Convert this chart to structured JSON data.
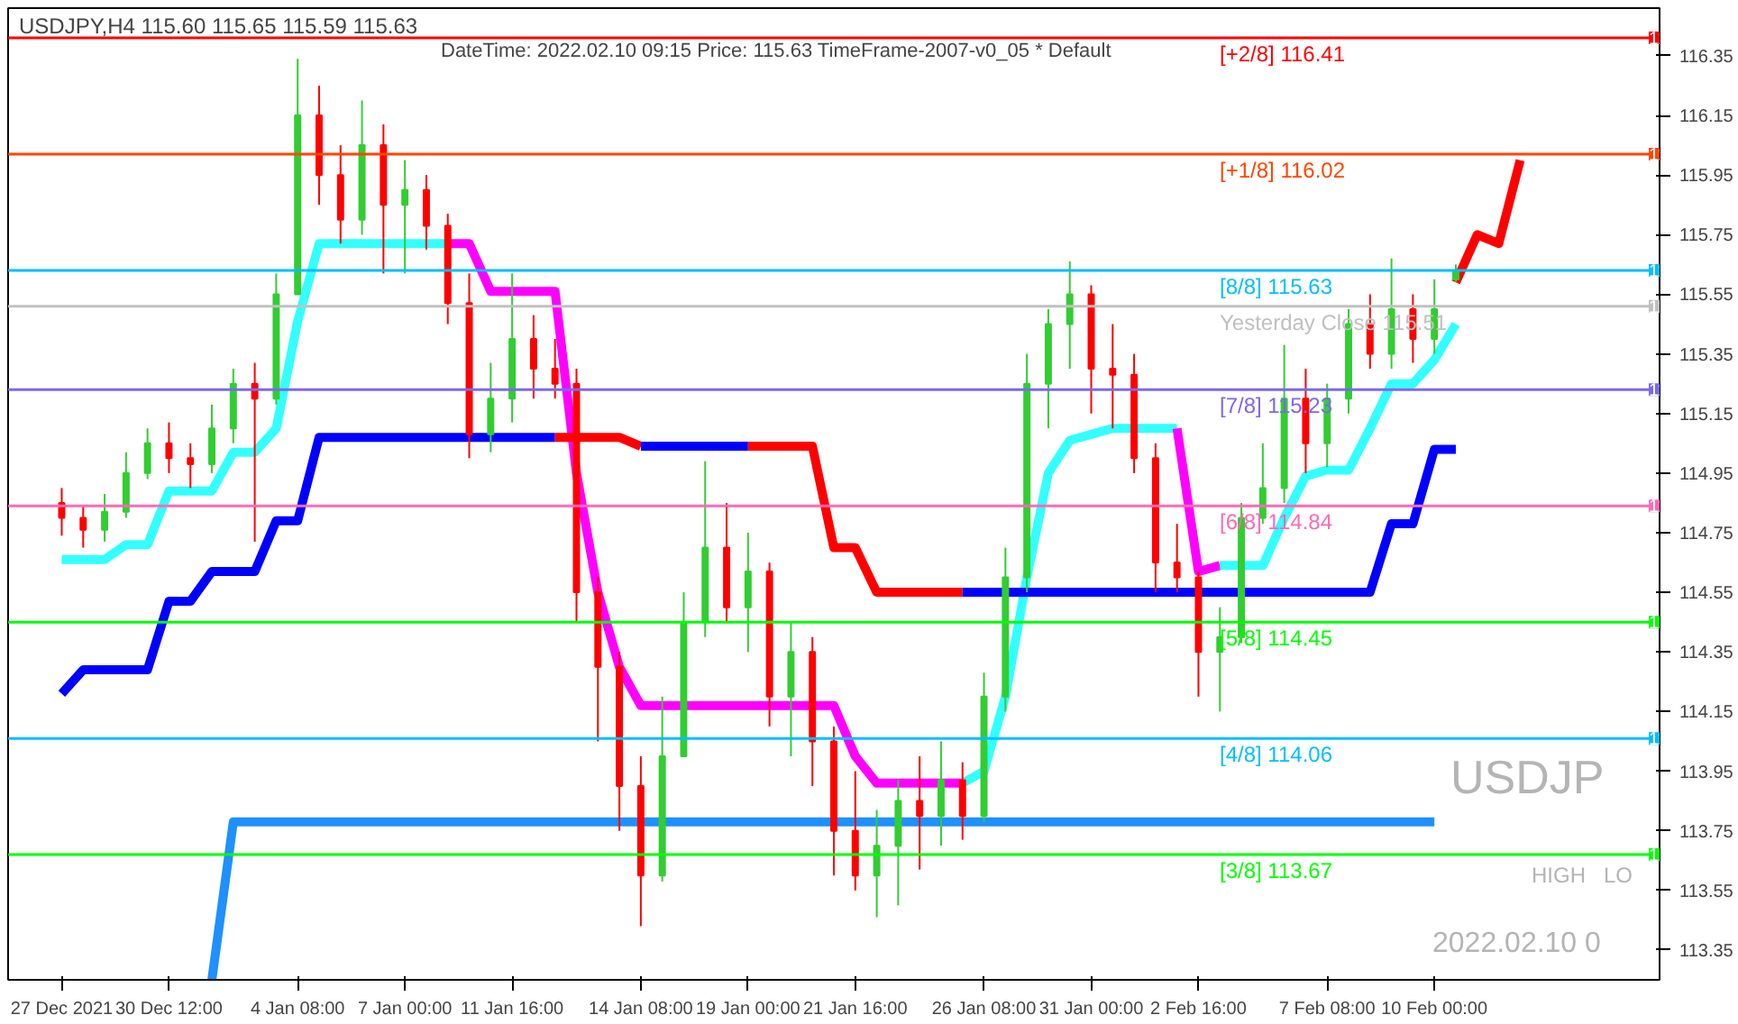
{
  "chart_data": {
    "type": "candlestick",
    "title": "USDJPY,H4  115.60 115.65 115.59 115.63",
    "subtitle": "DateTime: 2022.02.10 09:15   Price: 115.63   TimeFrame-2007-v0_05   *   Default",
    "categories": [
      "27 Dec 2021",
      null,
      null,
      null,
      null,
      "30 Dec 12:00",
      null,
      null,
      null,
      null,
      null,
      "4 Jan 08:00",
      null,
      null,
      null,
      null,
      "7 Jan 00:00",
      null,
      null,
      null,
      null,
      "11 Jan 16:00",
      null,
      null,
      null,
      null,
      null,
      "14 Jan 08:00",
      null,
      null,
      null,
      null,
      "19 Jan 00:00",
      null,
      null,
      null,
      null,
      "21 Jan 16:00",
      null,
      null,
      null,
      null,
      null,
      "26 Jan 08:00",
      null,
      null,
      null,
      null,
      "31 Jan 00:00",
      null,
      null,
      null,
      null,
      "2 Feb 16:00",
      null,
      null,
      null,
      null,
      null,
      "7 Feb 08:00",
      null,
      null,
      null,
      null,
      "10 Feb 00:00",
      null,
      null,
      null,
      null,
      null,
      null,
      null,
      null,
      null,
      null
    ],
    "ohlc": [
      [
        114.85,
        114.9,
        114.74,
        114.8
      ],
      [
        114.8,
        114.84,
        114.7,
        114.76
      ],
      [
        114.76,
        114.88,
        114.72,
        114.82
      ],
      [
        114.82,
        115.02,
        114.8,
        114.95
      ],
      [
        114.95,
        115.1,
        114.93,
        115.05
      ],
      [
        115.05,
        115.12,
        114.95,
        115.0
      ],
      [
        115.0,
        115.05,
        114.9,
        114.98
      ],
      [
        114.98,
        115.18,
        114.95,
        115.1
      ],
      [
        115.1,
        115.3,
        115.05,
        115.25
      ],
      [
        115.25,
        115.32,
        114.72,
        115.2
      ],
      [
        115.2,
        115.62,
        115.18,
        115.55
      ],
      [
        115.55,
        116.34,
        115.55,
        116.15
      ],
      [
        116.15,
        116.25,
        115.85,
        115.95
      ],
      [
        115.95,
        116.05,
        115.72,
        115.8
      ],
      [
        115.8,
        116.2,
        115.75,
        116.05
      ],
      [
        116.05,
        116.12,
        115.62,
        115.85
      ],
      [
        115.85,
        116.0,
        115.62,
        115.9
      ],
      [
        115.9,
        115.95,
        115.7,
        115.78
      ],
      [
        115.78,
        115.82,
        115.45,
        115.52
      ],
      [
        115.52,
        115.62,
        115.0,
        115.08
      ],
      [
        115.08,
        115.32,
        115.02,
        115.2
      ],
      [
        115.2,
        115.62,
        115.12,
        115.4
      ],
      [
        115.4,
        115.48,
        115.2,
        115.3
      ],
      [
        115.3,
        115.4,
        115.2,
        115.25
      ],
      [
        115.25,
        115.3,
        114.45,
        114.55
      ],
      [
        114.55,
        114.6,
        114.05,
        114.3
      ],
      [
        114.3,
        114.35,
        113.75,
        113.9
      ],
      [
        113.9,
        114.0,
        113.43,
        113.6
      ],
      [
        113.6,
        114.2,
        113.58,
        114.0
      ],
      [
        114.0,
        114.55,
        114.0,
        114.45
      ],
      [
        114.45,
        114.99,
        114.4,
        114.7
      ],
      [
        114.7,
        114.85,
        114.45,
        114.5
      ],
      [
        114.5,
        114.75,
        114.35,
        114.62
      ],
      [
        114.62,
        114.65,
        114.1,
        114.2
      ],
      [
        114.2,
        114.45,
        114.0,
        114.35
      ],
      [
        114.35,
        114.4,
        113.9,
        114.05
      ],
      [
        114.05,
        114.1,
        113.6,
        113.75
      ],
      [
        113.75,
        113.95,
        113.55,
        113.6
      ],
      [
        113.6,
        113.82,
        113.46,
        113.7
      ],
      [
        113.7,
        113.92,
        113.5,
        113.85
      ],
      [
        113.85,
        114.0,
        113.62,
        113.8
      ],
      [
        113.8,
        114.05,
        113.7,
        113.92
      ],
      [
        113.92,
        113.98,
        113.72,
        113.8
      ],
      [
        113.8,
        114.28,
        113.78,
        114.2
      ],
      [
        114.2,
        114.7,
        114.15,
        114.6
      ],
      [
        114.6,
        115.35,
        114.55,
        115.25
      ],
      [
        115.25,
        115.5,
        115.1,
        115.45
      ],
      [
        115.45,
        115.66,
        115.3,
        115.55
      ],
      [
        115.55,
        115.58,
        115.15,
        115.3
      ],
      [
        115.3,
        115.45,
        115.1,
        115.28
      ],
      [
        115.28,
        115.35,
        114.95,
        115.0
      ],
      [
        115.0,
        115.05,
        114.55,
        114.65
      ],
      [
        114.65,
        114.78,
        114.55,
        114.6
      ],
      [
        114.6,
        114.62,
        114.2,
        114.35
      ],
      [
        114.35,
        114.5,
        114.15,
        114.4
      ],
      [
        114.4,
        114.85,
        114.38,
        114.8
      ],
      [
        114.8,
        115.05,
        114.78,
        114.9
      ],
      [
        114.9,
        115.38,
        114.85,
        115.2
      ],
      [
        115.2,
        115.3,
        114.95,
        115.05
      ],
      [
        115.05,
        115.25,
        114.97,
        115.2
      ],
      [
        115.2,
        115.5,
        115.15,
        115.45
      ],
      [
        115.45,
        115.55,
        115.3,
        115.35
      ],
      [
        115.35,
        115.67,
        115.3,
        115.5
      ],
      [
        115.5,
        115.55,
        115.32,
        115.4
      ],
      [
        115.4,
        115.6,
        115.35,
        115.5
      ],
      [
        115.6,
        115.65,
        115.59,
        115.63
      ],
      null,
      null,
      null,
      null,
      null,
      null,
      null,
      null,
      null
    ],
    "colors": [
      "#ff0000",
      "#ff0000",
      "#32cd32",
      "#32cd32",
      "#32cd32",
      "#ff0000",
      "#ff0000",
      "#32cd32",
      "#32cd32",
      "#ff0000",
      "#32cd32",
      "#32cd32",
      "#ff0000",
      "#ff0000",
      "#32cd32",
      "#ff0000",
      "#32cd32",
      "#ff0000",
      "#ff0000",
      "#ff0000",
      "#32cd32",
      "#32cd32",
      "#ff0000",
      "#ff0000",
      "#ff0000",
      "#ff0000",
      "#ff0000",
      "#ff0000",
      "#32cd32",
      "#32cd32",
      "#32cd32",
      "#ff0000",
      "#32cd32",
      "#ff0000",
      "#32cd32",
      "#ff0000",
      "#ff0000",
      "#ff0000",
      "#32cd32",
      "#32cd32",
      "#ff0000",
      "#32cd32",
      "#ff0000",
      "#32cd32",
      "#32cd32",
      "#32cd32",
      "#32cd32",
      "#32cd32",
      "#ff0000",
      "#ff0000",
      "#ff0000",
      "#ff0000",
      "#ff0000",
      "#ff0000",
      "#32cd32",
      "#32cd32",
      "#32cd32",
      "#32cd32",
      "#ff0000",
      "#32cd32",
      "#32cd32",
      "#ff0000",
      "#32cd32",
      "#ff0000",
      "#32cd32",
      "#32cd32",
      null,
      null,
      null,
      null,
      null,
      null,
      null,
      null,
      null
    ],
    "series": [
      {
        "type": "line",
        "color": "#33ffff",
        "values": [
          114.66,
          114.66,
          114.66,
          114.71,
          114.71,
          114.89,
          114.89,
          114.89,
          115.02,
          115.02,
          115.1,
          115.46,
          115.72,
          115.72,
          115.72,
          115.72,
          115.72,
          115.72,
          115.72,
          null,
          null,
          null,
          null,
          null,
          null,
          null,
          null,
          null,
          null,
          null,
          null,
          null,
          null,
          null,
          null,
          null,
          null,
          null,
          null,
          null,
          null,
          null,
          null,
          null,
          null,
          null,
          null,
          null,
          null,
          null,
          null,
          null,
          null,
          null,
          null,
          null,
          null,
          null,
          null,
          null,
          null,
          null,
          null,
          null,
          null,
          null,
          null,
          null,
          null,
          null,
          null,
          null,
          null,
          null,
          null
        ]
      },
      {
        "type": "line",
        "color": "#ff00ff",
        "values": [
          null,
          null,
          null,
          null,
          null,
          null,
          null,
          null,
          null,
          null,
          null,
          null,
          null,
          null,
          null,
          null,
          null,
          null,
          115.72,
          115.72,
          115.56,
          115.56,
          115.56,
          115.56,
          114.95,
          114.55,
          114.3,
          114.17,
          114.17,
          114.17,
          114.17,
          114.17,
          114.17,
          114.17,
          114.17,
          114.17,
          114.17,
          114.0,
          113.91,
          113.91,
          113.91,
          113.91,
          113.91,
          null,
          null,
          null,
          null,
          null,
          null,
          null,
          null,
          null,
          null,
          null,
          null,
          null,
          null,
          null,
          null,
          null,
          null,
          null,
          null,
          null,
          null,
          null,
          null,
          null,
          null,
          null,
          null,
          null,
          null,
          null,
          null
        ]
      },
      {
        "type": "line",
        "color": "#33ffff",
        "values": [
          null,
          null,
          null,
          null,
          null,
          null,
          null,
          null,
          null,
          null,
          null,
          null,
          null,
          null,
          null,
          null,
          null,
          null,
          null,
          null,
          null,
          null,
          null,
          null,
          null,
          null,
          null,
          null,
          null,
          null,
          null,
          null,
          null,
          null,
          null,
          null,
          null,
          null,
          null,
          null,
          null,
          null,
          113.91,
          113.95,
          114.2,
          114.6,
          114.95,
          115.06,
          115.08,
          115.1,
          115.1,
          115.1,
          115.1,
          null,
          null,
          null,
          null,
          null,
          null,
          null,
          null,
          null,
          null,
          null,
          null,
          null,
          null,
          null,
          null,
          null,
          null,
          null,
          null,
          null,
          null
        ]
      },
      {
        "type": "line",
        "color": "#ff00ff",
        "values": [
          null,
          null,
          null,
          null,
          null,
          null,
          null,
          null,
          null,
          null,
          null,
          null,
          null,
          null,
          null,
          null,
          null,
          null,
          null,
          null,
          null,
          null,
          null,
          null,
          null,
          null,
          null,
          null,
          null,
          null,
          null,
          null,
          null,
          null,
          null,
          null,
          null,
          null,
          null,
          null,
          null,
          null,
          null,
          null,
          null,
          null,
          null,
          null,
          null,
          null,
          null,
          null,
          115.1,
          114.62,
          114.64,
          null,
          null,
          null,
          null,
          null,
          null,
          null,
          null,
          null,
          null,
          null,
          null,
          null,
          null,
          null,
          null,
          null,
          null,
          null,
          null
        ]
      },
      {
        "type": "line",
        "color": "#33ffff",
        "values": [
          null,
          null,
          null,
          null,
          null,
          null,
          null,
          null,
          null,
          null,
          null,
          null,
          null,
          null,
          null,
          null,
          null,
          null,
          null,
          null,
          null,
          null,
          null,
          null,
          null,
          null,
          null,
          null,
          null,
          null,
          null,
          null,
          null,
          null,
          null,
          null,
          null,
          null,
          null,
          null,
          null,
          null,
          null,
          null,
          null,
          null,
          null,
          null,
          null,
          null,
          null,
          null,
          null,
          null,
          114.64,
          114.64,
          114.64,
          114.8,
          114.94,
          114.96,
          114.96,
          115.1,
          115.25,
          115.25,
          115.33,
          115.45,
          null,
          null,
          null,
          null,
          null,
          null,
          null,
          null,
          null
        ]
      },
      {
        "type": "line",
        "color": "#0000ff",
        "values": [
          114.21,
          114.29,
          114.29,
          114.29,
          114.29,
          114.52,
          114.52,
          114.62,
          114.62,
          114.62,
          114.79,
          114.79,
          115.07,
          115.07,
          115.07,
          115.07,
          115.07,
          115.07,
          115.07,
          115.07,
          115.07,
          115.07,
          115.07,
          115.07,
          null,
          null,
          null,
          null,
          null,
          null,
          null,
          null,
          null,
          null,
          null,
          null,
          null,
          null,
          null,
          null,
          null,
          null,
          null,
          null,
          null,
          null,
          null,
          null,
          null,
          null,
          null,
          null,
          null,
          null,
          null,
          null,
          null,
          null,
          null,
          null,
          null,
          null,
          null,
          null,
          null,
          null,
          null,
          null,
          null,
          null,
          null,
          null,
          null,
          null,
          null
        ]
      },
      {
        "type": "line",
        "color": "#ff0000",
        "values": [
          null,
          null,
          null,
          null,
          null,
          null,
          null,
          null,
          null,
          null,
          null,
          null,
          null,
          null,
          null,
          null,
          null,
          null,
          null,
          null,
          null,
          null,
          null,
          115.07,
          115.07,
          115.07,
          115.07,
          115.04,
          null,
          null,
          null,
          null,
          null,
          null,
          null,
          null,
          null,
          null,
          null,
          null,
          null,
          null,
          null,
          null,
          null,
          null,
          null,
          null,
          null,
          null,
          null,
          null,
          null,
          null,
          null,
          null,
          null,
          null,
          null,
          null,
          null,
          null,
          null,
          null,
          null,
          null,
          null,
          null,
          null,
          null,
          null,
          null,
          null,
          null,
          null
        ]
      },
      {
        "type": "line",
        "color": "#0000ff",
        "values": [
          null,
          null,
          null,
          null,
          null,
          null,
          null,
          null,
          null,
          null,
          null,
          null,
          null,
          null,
          null,
          null,
          null,
          null,
          null,
          null,
          null,
          null,
          null,
          null,
          null,
          null,
          null,
          115.04,
          115.04,
          115.04,
          115.04,
          115.04,
          115.04,
          null,
          null,
          null,
          null,
          null,
          null,
          null,
          null,
          null,
          null,
          null,
          null,
          null,
          null,
          null,
          null,
          null,
          null,
          null,
          null,
          null,
          null,
          null,
          null,
          null,
          null,
          null,
          null,
          null,
          null,
          null,
          null,
          null,
          null,
          null,
          null,
          null,
          null,
          null,
          null,
          null,
          null
        ]
      },
      {
        "type": "line",
        "color": "#ff0000",
        "values": [
          null,
          null,
          null,
          null,
          null,
          null,
          null,
          null,
          null,
          null,
          null,
          null,
          null,
          null,
          null,
          null,
          null,
          null,
          null,
          null,
          null,
          null,
          null,
          null,
          null,
          null,
          null,
          null,
          null,
          null,
          null,
          null,
          115.04,
          115.04,
          115.04,
          115.04,
          114.7,
          114.7,
          114.55,
          114.55,
          114.55,
          114.55,
          114.55,
          null,
          null,
          null,
          null,
          null,
          null,
          null,
          null,
          null,
          null,
          null,
          null,
          null,
          null,
          null,
          null,
          null,
          null,
          null,
          null,
          null,
          null,
          null,
          null,
          null,
          null,
          null,
          null,
          null,
          null,
          null,
          null
        ]
      },
      {
        "type": "line",
        "color": "#0000ff",
        "values": [
          null,
          null,
          null,
          null,
          null,
          null,
          null,
          null,
          null,
          null,
          null,
          null,
          null,
          null,
          null,
          null,
          null,
          null,
          null,
          null,
          null,
          null,
          null,
          null,
          null,
          null,
          null,
          null,
          null,
          null,
          null,
          null,
          null,
          null,
          null,
          null,
          null,
          null,
          null,
          null,
          null,
          null,
          114.55,
          114.55,
          114.55,
          114.55,
          114.55,
          114.55,
          114.55,
          114.55,
          114.55,
          114.55,
          114.55,
          114.55,
          114.55,
          114.55,
          114.55,
          114.55,
          114.55,
          114.55,
          114.55,
          114.55,
          114.78,
          114.78,
          115.03,
          115.03,
          null,
          null,
          null,
          null,
          null,
          null,
          null,
          null,
          null
        ]
      },
      {
        "type": "line",
        "color": "#1e90ff",
        "values": [
          null,
          null,
          null,
          null,
          null,
          null,
          null,
          113.25,
          113.78,
          113.78,
          113.78,
          113.78,
          113.78,
          113.78,
          113.78,
          113.78,
          113.78,
          113.78,
          113.78,
          113.78,
          113.78,
          113.78,
          113.78,
          113.78,
          113.78,
          113.78,
          113.78,
          113.78,
          113.78,
          113.78,
          113.78,
          113.78,
          113.78,
          113.78,
          113.78,
          113.78,
          113.78,
          113.78,
          113.78,
          113.78,
          113.78,
          113.78,
          113.78,
          113.78,
          113.78,
          113.78,
          113.78,
          113.78,
          113.78,
          113.78,
          113.78,
          113.78,
          113.78,
          113.78,
          113.78,
          113.78,
          113.78,
          113.78,
          113.78,
          113.78,
          113.78,
          113.78,
          113.78,
          113.78,
          113.78,
          null,
          null,
          null,
          null,
          null,
          null,
          null,
          null,
          null,
          null
        ]
      },
      {
        "type": "line",
        "color": "#ff0000",
        "values": [
          null,
          null,
          null,
          null,
          null,
          null,
          null,
          null,
          null,
          null,
          null,
          null,
          null,
          null,
          null,
          null,
          null,
          null,
          null,
          null,
          null,
          null,
          null,
          null,
          null,
          null,
          null,
          null,
          null,
          null,
          null,
          null,
          null,
          null,
          null,
          null,
          null,
          null,
          null,
          null,
          null,
          null,
          null,
          null,
          null,
          null,
          null,
          null,
          null,
          null,
          null,
          null,
          null,
          null,
          null,
          null,
          null,
          null,
          null,
          null,
          null,
          null,
          null,
          null,
          null,
          115.59,
          115.75,
          115.72,
          116.0,
          null,
          null,
          null,
          null,
          null,
          null
        ]
      }
    ],
    "ref_lines": [
      {
        "axis": "y",
        "value": 116.41,
        "label": "[+2/8]   116.41",
        "color": "#ff0000"
      },
      {
        "axis": "y",
        "value": 116.02,
        "label": "[+1/8]   116.02",
        "color": "#ff4500"
      },
      {
        "axis": "y",
        "value": 115.63,
        "label": "[8/8]   115.63",
        "color": "#00bfff"
      },
      {
        "axis": "y",
        "value": 115.51,
        "label": "Yesterday Close 115.51",
        "color": "#c0c0c0"
      },
      {
        "axis": "y",
        "value": 115.23,
        "label": "[7/8]   115.23",
        "color": "#7b68ee"
      },
      {
        "axis": "y",
        "value": 114.84,
        "label": "[6/8]   114.84",
        "color": "#ff69b4"
      },
      {
        "axis": "y",
        "value": 114.45,
        "label": "[5/8]   114.45",
        "color": "#00ff00"
      },
      {
        "axis": "y",
        "value": 114.06,
        "label": "[4/8]   114.06",
        "color": "#00bfff"
      },
      {
        "axis": "y",
        "value": 113.67,
        "label": "[3/8]   113.67",
        "color": "#00ff00"
      }
    ],
    "annotations": [
      "USDJP",
      "HIGH",
      "LO",
      "2022.02.10 0"
    ],
    "ylim": [
      113.25,
      116.51
    ],
    "yticks": [
      116.35,
      116.15,
      115.95,
      115.75,
      115.55,
      115.35,
      115.15,
      114.95,
      114.75,
      114.55,
      114.35,
      114.15,
      113.95,
      113.75,
      113.55,
      113.35
    ],
    "grid": false
  }
}
